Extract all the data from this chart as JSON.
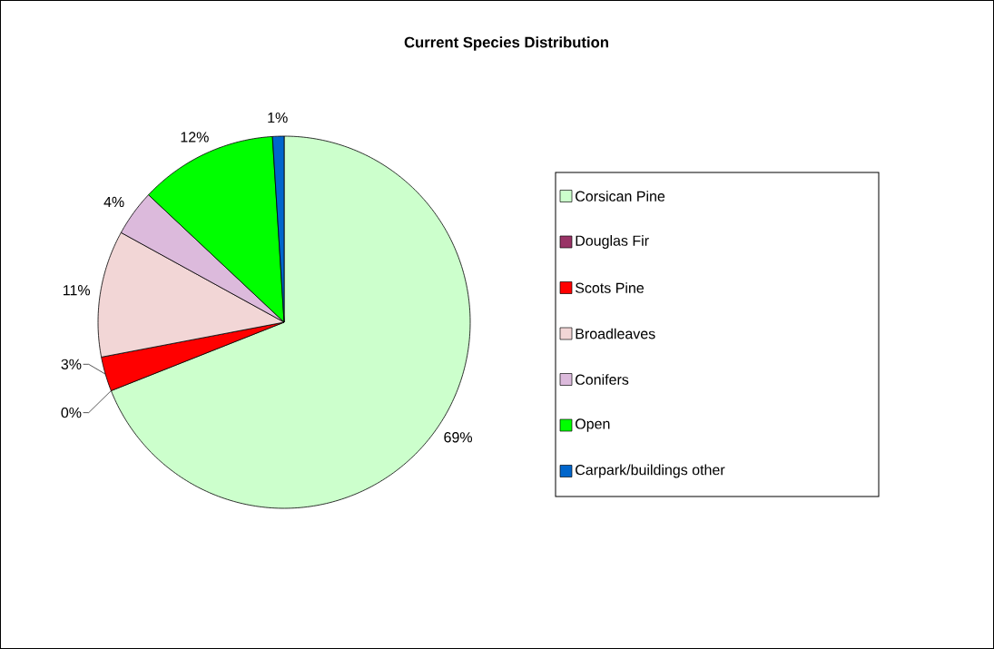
{
  "chart_data": {
    "type": "pie",
    "title": "Current Species Distribution",
    "categories": [
      "Corsican Pine",
      "Douglas Fir",
      "Scots Pine",
      "Broadleaves",
      "Conifers",
      "Open",
      "Carpark/buildings other"
    ],
    "values": [
      69,
      0,
      3,
      11,
      4,
      12,
      1
    ],
    "value_labels": [
      "69%",
      "0%",
      "3%",
      "11%",
      "4%",
      "12%",
      "1%"
    ],
    "colors": [
      "#ccffcc",
      "#993366",
      "#ff0000",
      "#f2d6d6",
      "#dcbadc",
      "#00ff00",
      "#0066cc"
    ],
    "legend": "right"
  }
}
